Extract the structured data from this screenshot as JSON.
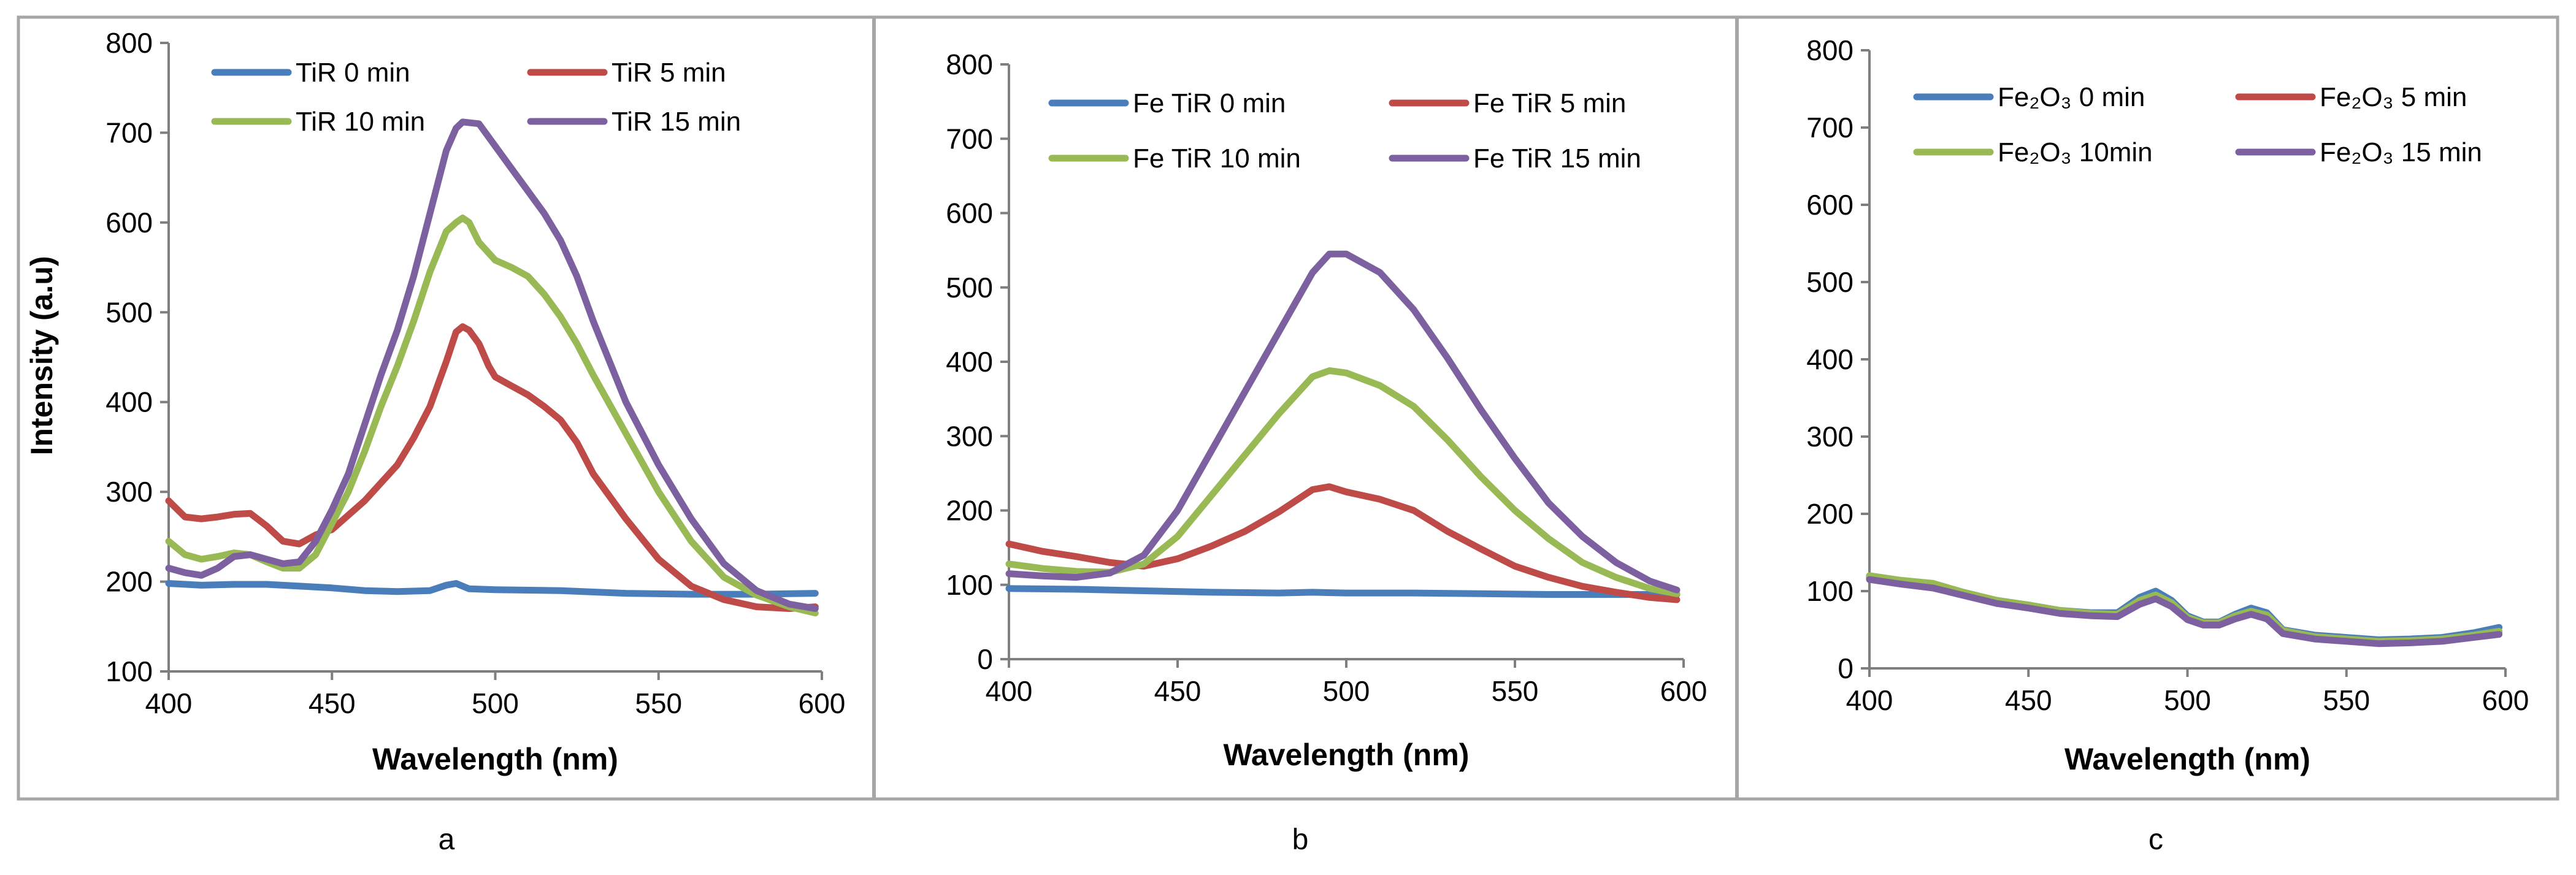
{
  "chart_data": [
    {
      "type": "line",
      "caption": "a",
      "xlabel": "Wavelength (nm)",
      "ylabel": "Intensity (a.u)",
      "xlim": [
        400,
        600
      ],
      "ylim": [
        100,
        800
      ],
      "xticks": [
        400,
        450,
        500,
        550,
        600
      ],
      "yticks": [
        100,
        200,
        300,
        400,
        500,
        600,
        700,
        800
      ],
      "grid": false,
      "legend_position": "top",
      "legend_columns": 2,
      "series": [
        {
          "name": "TiR 0 min",
          "color": "#4a7ebb",
          "x": [
            400,
            410,
            420,
            430,
            440,
            450,
            460,
            470,
            480,
            485,
            488,
            492,
            500,
            520,
            540,
            560,
            580,
            598
          ],
          "y": [
            198,
            196,
            197,
            197,
            195,
            193,
            190,
            189,
            190,
            196,
            198,
            192,
            191,
            190,
            187,
            186,
            186,
            187
          ]
        },
        {
          "name": "TiR 5 min",
          "color": "#be4b48",
          "x": [
            400,
            405,
            410,
            415,
            420,
            425,
            430,
            435,
            440,
            445,
            450,
            460,
            470,
            475,
            480,
            485,
            488,
            490,
            492,
            495,
            498,
            500,
            505,
            510,
            515,
            520,
            525,
            530,
            540,
            550,
            560,
            570,
            580,
            590,
            598
          ],
          "y": [
            290,
            272,
            270,
            272,
            275,
            276,
            262,
            245,
            242,
            252,
            258,
            290,
            330,
            360,
            395,
            445,
            478,
            484,
            480,
            465,
            440,
            428,
            418,
            408,
            395,
            380,
            355,
            320,
            270,
            225,
            195,
            180,
            172,
            170,
            172
          ]
        },
        {
          "name": "TiR 10 min",
          "color": "#98b954",
          "x": [
            400,
            405,
            410,
            415,
            420,
            425,
            430,
            435,
            440,
            445,
            450,
            455,
            460,
            465,
            470,
            475,
            480,
            485,
            488,
            490,
            492,
            495,
            500,
            505,
            510,
            515,
            520,
            525,
            530,
            540,
            550,
            560,
            570,
            580,
            590,
            598
          ],
          "y": [
            245,
            230,
            225,
            228,
            232,
            230,
            222,
            215,
            215,
            230,
            265,
            300,
            345,
            395,
            440,
            490,
            545,
            590,
            600,
            605,
            600,
            578,
            558,
            550,
            540,
            520,
            495,
            465,
            430,
            365,
            300,
            245,
            205,
            185,
            172,
            165
          ]
        },
        {
          "name": "TiR 15 min",
          "color": "#7d60a0",
          "x": [
            400,
            405,
            410,
            415,
            420,
            425,
            430,
            435,
            440,
            445,
            450,
            455,
            460,
            465,
            470,
            475,
            480,
            485,
            488,
            490,
            495,
            500,
            505,
            510,
            515,
            520,
            525,
            530,
            540,
            550,
            560,
            570,
            580,
            590,
            598
          ],
          "y": [
            215,
            210,
            207,
            215,
            228,
            230,
            225,
            220,
            222,
            245,
            280,
            320,
            375,
            430,
            480,
            540,
            610,
            680,
            705,
            712,
            710,
            685,
            660,
            635,
            610,
            580,
            540,
            490,
            400,
            330,
            270,
            220,
            190,
            175,
            170
          ]
        }
      ]
    },
    {
      "type": "line",
      "caption": "b",
      "xlabel": "Wavelength (nm)",
      "ylabel": "",
      "xlim": [
        400,
        600
      ],
      "ylim": [
        0,
        800
      ],
      "xticks": [
        400,
        450,
        500,
        550,
        600
      ],
      "yticks": [
        0,
        100,
        200,
        300,
        400,
        500,
        600,
        700,
        800
      ],
      "grid": false,
      "legend_position": "top",
      "legend_columns": 2,
      "series": [
        {
          "name": "Fe TiR 0 min",
          "color": "#4a7ebb",
          "x": [
            400,
            420,
            440,
            460,
            480,
            490,
            500,
            520,
            540,
            560,
            580,
            598
          ],
          "y": [
            95,
            94,
            92,
            90,
            89,
            90,
            89,
            89,
            88,
            87,
            87,
            87
          ]
        },
        {
          "name": "Fe TiR 5 min",
          "color": "#be4b48",
          "x": [
            400,
            410,
            420,
            430,
            440,
            450,
            460,
            470,
            480,
            490,
            495,
            500,
            510,
            520,
            530,
            540,
            550,
            560,
            570,
            580,
            590,
            598
          ],
          "y": [
            155,
            145,
            138,
            130,
            125,
            135,
            152,
            172,
            198,
            228,
            232,
            225,
            215,
            200,
            172,
            148,
            125,
            110,
            98,
            90,
            83,
            80
          ]
        },
        {
          "name": "Fe TiR 10 min",
          "color": "#98b954",
          "x": [
            400,
            410,
            420,
            430,
            440,
            450,
            460,
            470,
            480,
            490,
            495,
            500,
            510,
            520,
            530,
            540,
            550,
            560,
            570,
            580,
            590,
            598
          ],
          "y": [
            128,
            122,
            118,
            117,
            128,
            165,
            220,
            275,
            330,
            380,
            388,
            385,
            368,
            340,
            295,
            245,
            200,
            162,
            130,
            110,
            95,
            88
          ]
        },
        {
          "name": "Fe TiR 15 min",
          "color": "#7d60a0",
          "x": [
            400,
            410,
            420,
            430,
            440,
            450,
            460,
            470,
            480,
            490,
            495,
            500,
            510,
            520,
            530,
            540,
            550,
            560,
            570,
            580,
            590,
            598
          ],
          "y": [
            115,
            112,
            110,
            116,
            140,
            200,
            280,
            360,
            440,
            520,
            545,
            545,
            520,
            470,
            405,
            335,
            270,
            210,
            165,
            130,
            105,
            93
          ]
        }
      ]
    },
    {
      "type": "line",
      "caption": "c",
      "xlabel": "Wavelength (nm)",
      "ylabel": "",
      "xlim": [
        400,
        600
      ],
      "ylim": [
        0,
        800
      ],
      "xticks": [
        400,
        450,
        500,
        550,
        600
      ],
      "yticks": [
        0,
        100,
        200,
        300,
        400,
        500,
        600,
        700,
        800
      ],
      "grid": false,
      "legend_position": "top",
      "legend_columns": 2,
      "series": [
        {
          "name": "Fe₂O₃ 0 min",
          "color": "#4a7ebb",
          "x": [
            400,
            410,
            420,
            430,
            440,
            450,
            460,
            470,
            478,
            485,
            490,
            495,
            500,
            505,
            510,
            515,
            520,
            525,
            530,
            540,
            550,
            560,
            570,
            580,
            590,
            598
          ],
          "y": [
            118,
            112,
            108,
            98,
            88,
            82,
            75,
            72,
            72,
            92,
            100,
            88,
            68,
            60,
            60,
            70,
            78,
            72,
            50,
            43,
            40,
            37,
            38,
            40,
            46,
            53
          ]
        },
        {
          "name": "Fe₂O₃ 5 min",
          "color": "#be4b48",
          "x": [
            400,
            410,
            420,
            430,
            440,
            450,
            460,
            470,
            478,
            485,
            490,
            495,
            500,
            505,
            510,
            515,
            520,
            525,
            530,
            540,
            550,
            560,
            570,
            580,
            590,
            598
          ],
          "y": [
            116,
            110,
            106,
            96,
            86,
            80,
            73,
            70,
            70,
            86,
            92,
            82,
            65,
            58,
            58,
            66,
            72,
            67,
            48,
            40,
            37,
            34,
            35,
            37,
            42,
            47
          ]
        },
        {
          "name": "Fe₂O₃ 10min",
          "color": "#98b954",
          "x": [
            400,
            410,
            420,
            430,
            440,
            450,
            460,
            470,
            478,
            485,
            490,
            495,
            500,
            505,
            510,
            515,
            520,
            525,
            530,
            540,
            550,
            560,
            570,
            580,
            590,
            598
          ],
          "y": [
            120,
            114,
            110,
            98,
            88,
            82,
            75,
            71,
            70,
            88,
            95,
            85,
            66,
            59,
            59,
            68,
            74,
            69,
            49,
            41,
            38,
            35,
            36,
            38,
            43,
            48
          ]
        },
        {
          "name": "Fe₂O₃ 15 min",
          "color": "#7d60a0",
          "x": [
            400,
            410,
            420,
            430,
            440,
            450,
            460,
            470,
            478,
            485,
            490,
            495,
            500,
            505,
            510,
            515,
            520,
            525,
            530,
            540,
            550,
            560,
            570,
            580,
            590,
            598
          ],
          "y": [
            115,
            109,
            104,
            94,
            84,
            78,
            71,
            68,
            67,
            83,
            90,
            80,
            63,
            56,
            56,
            64,
            70,
            64,
            45,
            38,
            35,
            32,
            33,
            35,
            40,
            44
          ]
        }
      ]
    }
  ]
}
